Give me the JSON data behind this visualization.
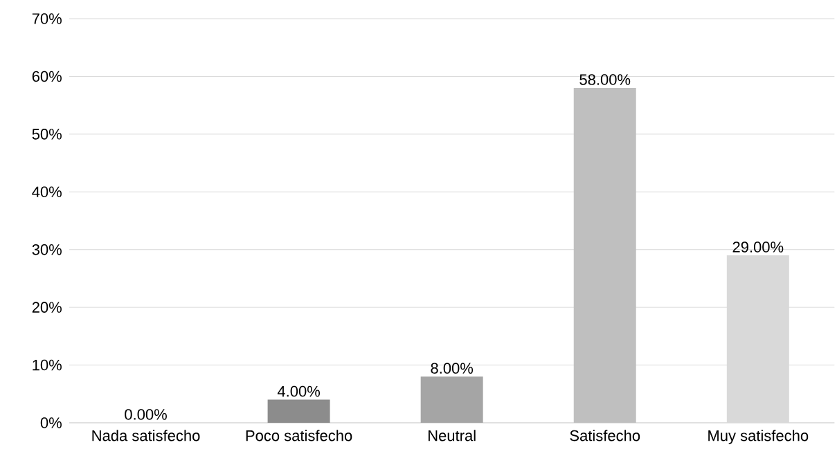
{
  "chart_data": {
    "type": "bar",
    "categories": [
      "Nada satisfecho",
      "Poco satisfecho",
      "Neutral",
      "Satisfecho",
      "Muy satisfecho"
    ],
    "values": [
      0,
      4,
      8,
      58,
      29
    ],
    "colors": [
      "#7f7f7f",
      "#8c8c8c",
      "#a5a5a5",
      "#bfbfbf",
      "#d9d9d9"
    ],
    "value_labels": [
      "0.00%",
      "4.00%",
      "8.00%",
      "58.00%",
      "29.00%"
    ],
    "ylim": [
      0,
      70
    ],
    "yticks": [
      {
        "value": 0,
        "label": "0%"
      },
      {
        "value": 10,
        "label": "10%"
      },
      {
        "value": 20,
        "label": "20%"
      },
      {
        "value": 30,
        "label": "30%"
      },
      {
        "value": 40,
        "label": "40%"
      },
      {
        "value": 50,
        "label": "50%"
      },
      {
        "value": 60,
        "label": "60%"
      },
      {
        "value": 70,
        "label": "70%"
      }
    ],
    "grid": "y"
  }
}
